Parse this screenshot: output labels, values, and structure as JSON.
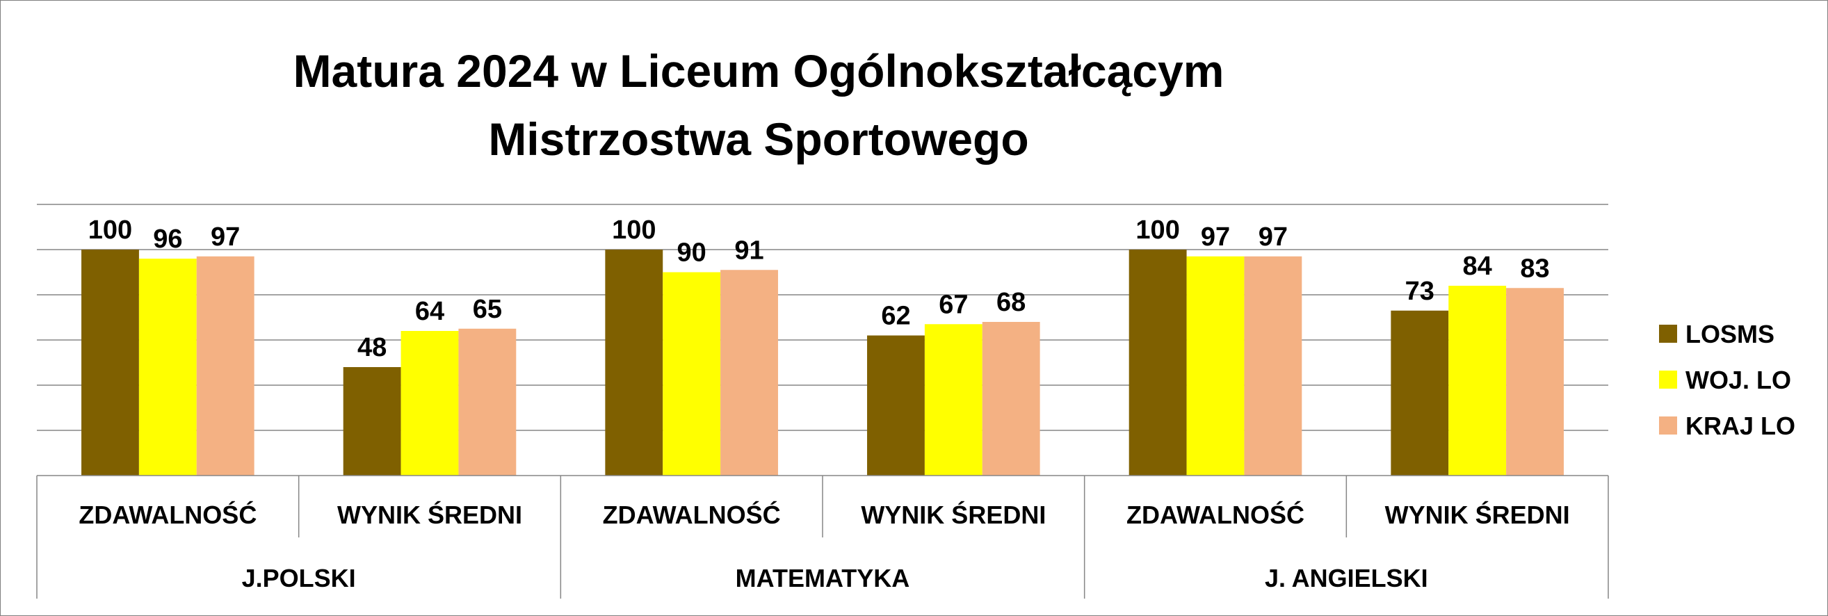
{
  "chart_data": {
    "type": "bar",
    "title_lines": [
      "Matura 2024 w Liceum Ogólnokształcącym",
      "Mistrzostwa Sportowego"
    ],
    "groups": [
      {
        "label": "J.POLSKI",
        "categories": [
          "ZDAWALNOŚĆ",
          "WYNIK ŚREDNI"
        ]
      },
      {
        "label": "MATEMATYKA",
        "categories": [
          "ZDAWALNOŚĆ",
          "WYNIK ŚREDNI"
        ]
      },
      {
        "label": "J. ANGIELSKI",
        "categories": [
          "ZDAWALNOŚĆ",
          "WYNIK ŚREDNI"
        ]
      }
    ],
    "series": [
      {
        "name": "LOSMS",
        "color": "#7f6000",
        "values": [
          100,
          48,
          100,
          62,
          100,
          73
        ]
      },
      {
        "name": "WOJ. LO",
        "color": "#ffff00",
        "values": [
          96,
          64,
          90,
          67,
          97,
          84
        ]
      },
      {
        "name": "KRAJ LO",
        "color": "#f4b183",
        "values": [
          97,
          65,
          91,
          68,
          97,
          83
        ]
      }
    ],
    "ylim": [
      0,
      120
    ],
    "grid": true,
    "y_tick_labels_shown": false,
    "data_labels": true,
    "legend_position": "right"
  }
}
